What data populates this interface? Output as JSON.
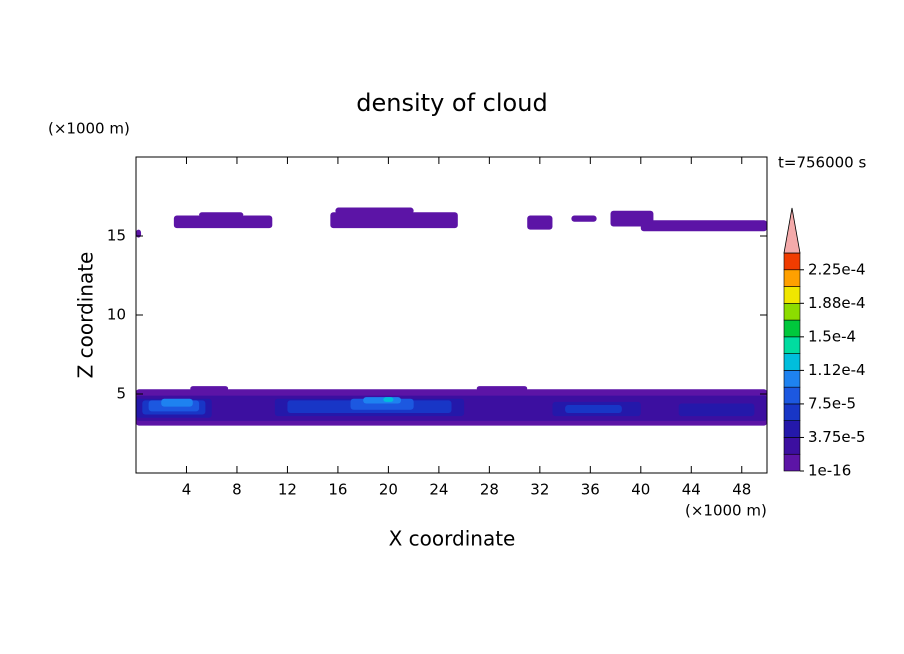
{
  "chart_data": {
    "type": "contour",
    "title": "density of cloud",
    "xlabel": "X coordinate",
    "ylabel": "Z coordinate",
    "xlabel_unit": "(×1000 m)",
    "ylabel_unit": "(×1000 m)",
    "annotation": "t=756000 s",
    "xlim": [
      0,
      50
    ],
    "xticks": [
      4,
      8,
      12,
      16,
      20,
      24,
      28,
      32,
      36,
      40,
      44,
      48
    ],
    "ylim": [
      0,
      20
    ],
    "yticks": [
      5,
      10,
      15
    ],
    "clim": [
      1e-16,
      0.00024375
    ],
    "cticks": [
      {
        "value": 1e-16,
        "label": "1e-16"
      },
      {
        "value": 3.75e-05,
        "label": "3.75e-5"
      },
      {
        "value": 7.5e-05,
        "label": "7.5e-5"
      },
      {
        "value": 0.0001125,
        "label": "1.12e-4"
      },
      {
        "value": 0.00015,
        "label": "1.5e-4"
      },
      {
        "value": 0.0001875,
        "label": "1.88e-4"
      },
      {
        "value": 0.000225,
        "label": "2.25e-4"
      }
    ],
    "colors": [
      "#5c14a6",
      "#3c0fa0",
      "#2418aa",
      "#1836c6",
      "#1c58e0",
      "#1e82f0",
      "#00bedc",
      "#00dca0",
      "#00c83c",
      "#8cdc00",
      "#f0e600",
      "#ffa000",
      "#f03c00"
    ],
    "extend_color": "#f4aaaa",
    "cells": [
      {
        "x": [
          0,
          0.4
        ],
        "z": [
          14.9,
          15.4
        ],
        "value": 1e-05
      },
      {
        "x": [
          3,
          10.8
        ],
        "z": [
          15.5,
          16.3
        ],
        "value": 1e-05
      },
      {
        "x": [
          5,
          8.5
        ],
        "z": [
          16.2,
          16.5
        ],
        "value": 1e-05
      },
      {
        "x": [
          15.4,
          25.5
        ],
        "z": [
          15.5,
          16.5
        ],
        "value": 1e-05
      },
      {
        "x": [
          15.8,
          22
        ],
        "z": [
          16.4,
          16.8
        ],
        "value": 1e-05
      },
      {
        "x": [
          31,
          33
        ],
        "z": [
          15.4,
          16.3
        ],
        "value": 1e-05
      },
      {
        "x": [
          34.5,
          36.5
        ],
        "z": [
          15.9,
          16.3
        ],
        "value": 1e-05
      },
      {
        "x": [
          37.6,
          41
        ],
        "z": [
          15.6,
          16.6
        ],
        "value": 1e-05
      },
      {
        "x": [
          40,
          50
        ],
        "z": [
          15.3,
          16.0
        ],
        "value": 1e-05
      },
      {
        "x": [
          0,
          50
        ],
        "z": [
          3.0,
          5.3
        ],
        "value": 1e-05
      },
      {
        "x": [
          4.3,
          7.3
        ],
        "z": [
          5.2,
          5.5
        ],
        "value": 1e-05
      },
      {
        "x": [
          27,
          31
        ],
        "z": [
          5.2,
          5.5
        ],
        "value": 1e-05
      },
      {
        "x": [
          0,
          50
        ],
        "z": [
          3.3,
          4.9
        ],
        "value": 2.5e-05
      },
      {
        "x": [
          0,
          6
        ],
        "z": [
          3.5,
          4.7
        ],
        "value": 4.5e-05
      },
      {
        "x": [
          11,
          26
        ],
        "z": [
          3.6,
          4.7
        ],
        "value": 4.5e-05
      },
      {
        "x": [
          33,
          40
        ],
        "z": [
          3.6,
          4.5
        ],
        "value": 4.5e-05
      },
      {
        "x": [
          43,
          49
        ],
        "z": [
          3.6,
          4.4
        ],
        "value": 4.5e-05
      },
      {
        "x": [
          0.5,
          5.5
        ],
        "z": [
          3.7,
          4.6
        ],
        "value": 6.5e-05
      },
      {
        "x": [
          12,
          25
        ],
        "z": [
          3.8,
          4.6
        ],
        "value": 6.5e-05
      },
      {
        "x": [
          34,
          38.5
        ],
        "z": [
          3.8,
          4.3
        ],
        "value": 6.5e-05
      },
      {
        "x": [
          1,
          5
        ],
        "z": [
          3.9,
          4.6
        ],
        "value": 8.5e-05
      },
      {
        "x": [
          17,
          22
        ],
        "z": [
          4.0,
          4.7
        ],
        "value": 8.5e-05
      },
      {
        "x": [
          2,
          4.5
        ],
        "z": [
          4.2,
          4.7
        ],
        "value": 0.000105
      },
      {
        "x": [
          18,
          21
        ],
        "z": [
          4.4,
          4.8
        ],
        "value": 0.000105
      },
      {
        "x": [
          19.6,
          20.4
        ],
        "z": [
          4.5,
          4.8
        ],
        "value": 0.00013
      }
    ]
  }
}
